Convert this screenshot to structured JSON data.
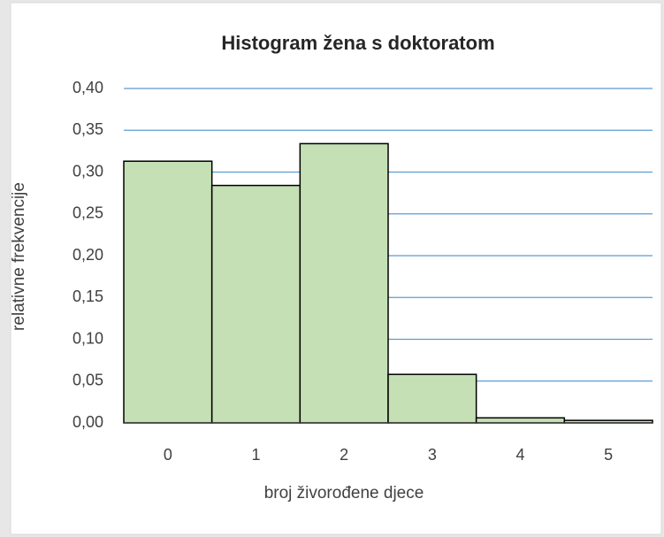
{
  "chart_data": {
    "type": "bar",
    "title": "Histogram žena s doktoratom",
    "x_label": "broj živorođene djece",
    "y_label": "relativne frekvencije",
    "categories": [
      "0",
      "1",
      "2",
      "3",
      "4",
      "5"
    ],
    "values": [
      0.313,
      0.284,
      0.334,
      0.058,
      0.006,
      0.003
    ],
    "color": "#c5e0b4",
    "edge_color": "#000000",
    "ylim": [
      0,
      0.4
    ],
    "yticks": [
      {
        "value": 0,
        "label": "0,00"
      },
      {
        "value": 0.05,
        "label": "0,05"
      },
      {
        "value": 0.1,
        "label": "0,10"
      },
      {
        "value": 0.15,
        "label": "0,15"
      },
      {
        "value": 0.2,
        "label": "0,20"
      },
      {
        "value": 0.25,
        "label": "0,25"
      },
      {
        "value": 0.3,
        "label": "0,30"
      },
      {
        "value": 0.35,
        "label": "0,35"
      },
      {
        "value": 0.4,
        "label": "0,40"
      }
    ],
    "grid": true,
    "grid_color": "#5b9bd5"
  }
}
